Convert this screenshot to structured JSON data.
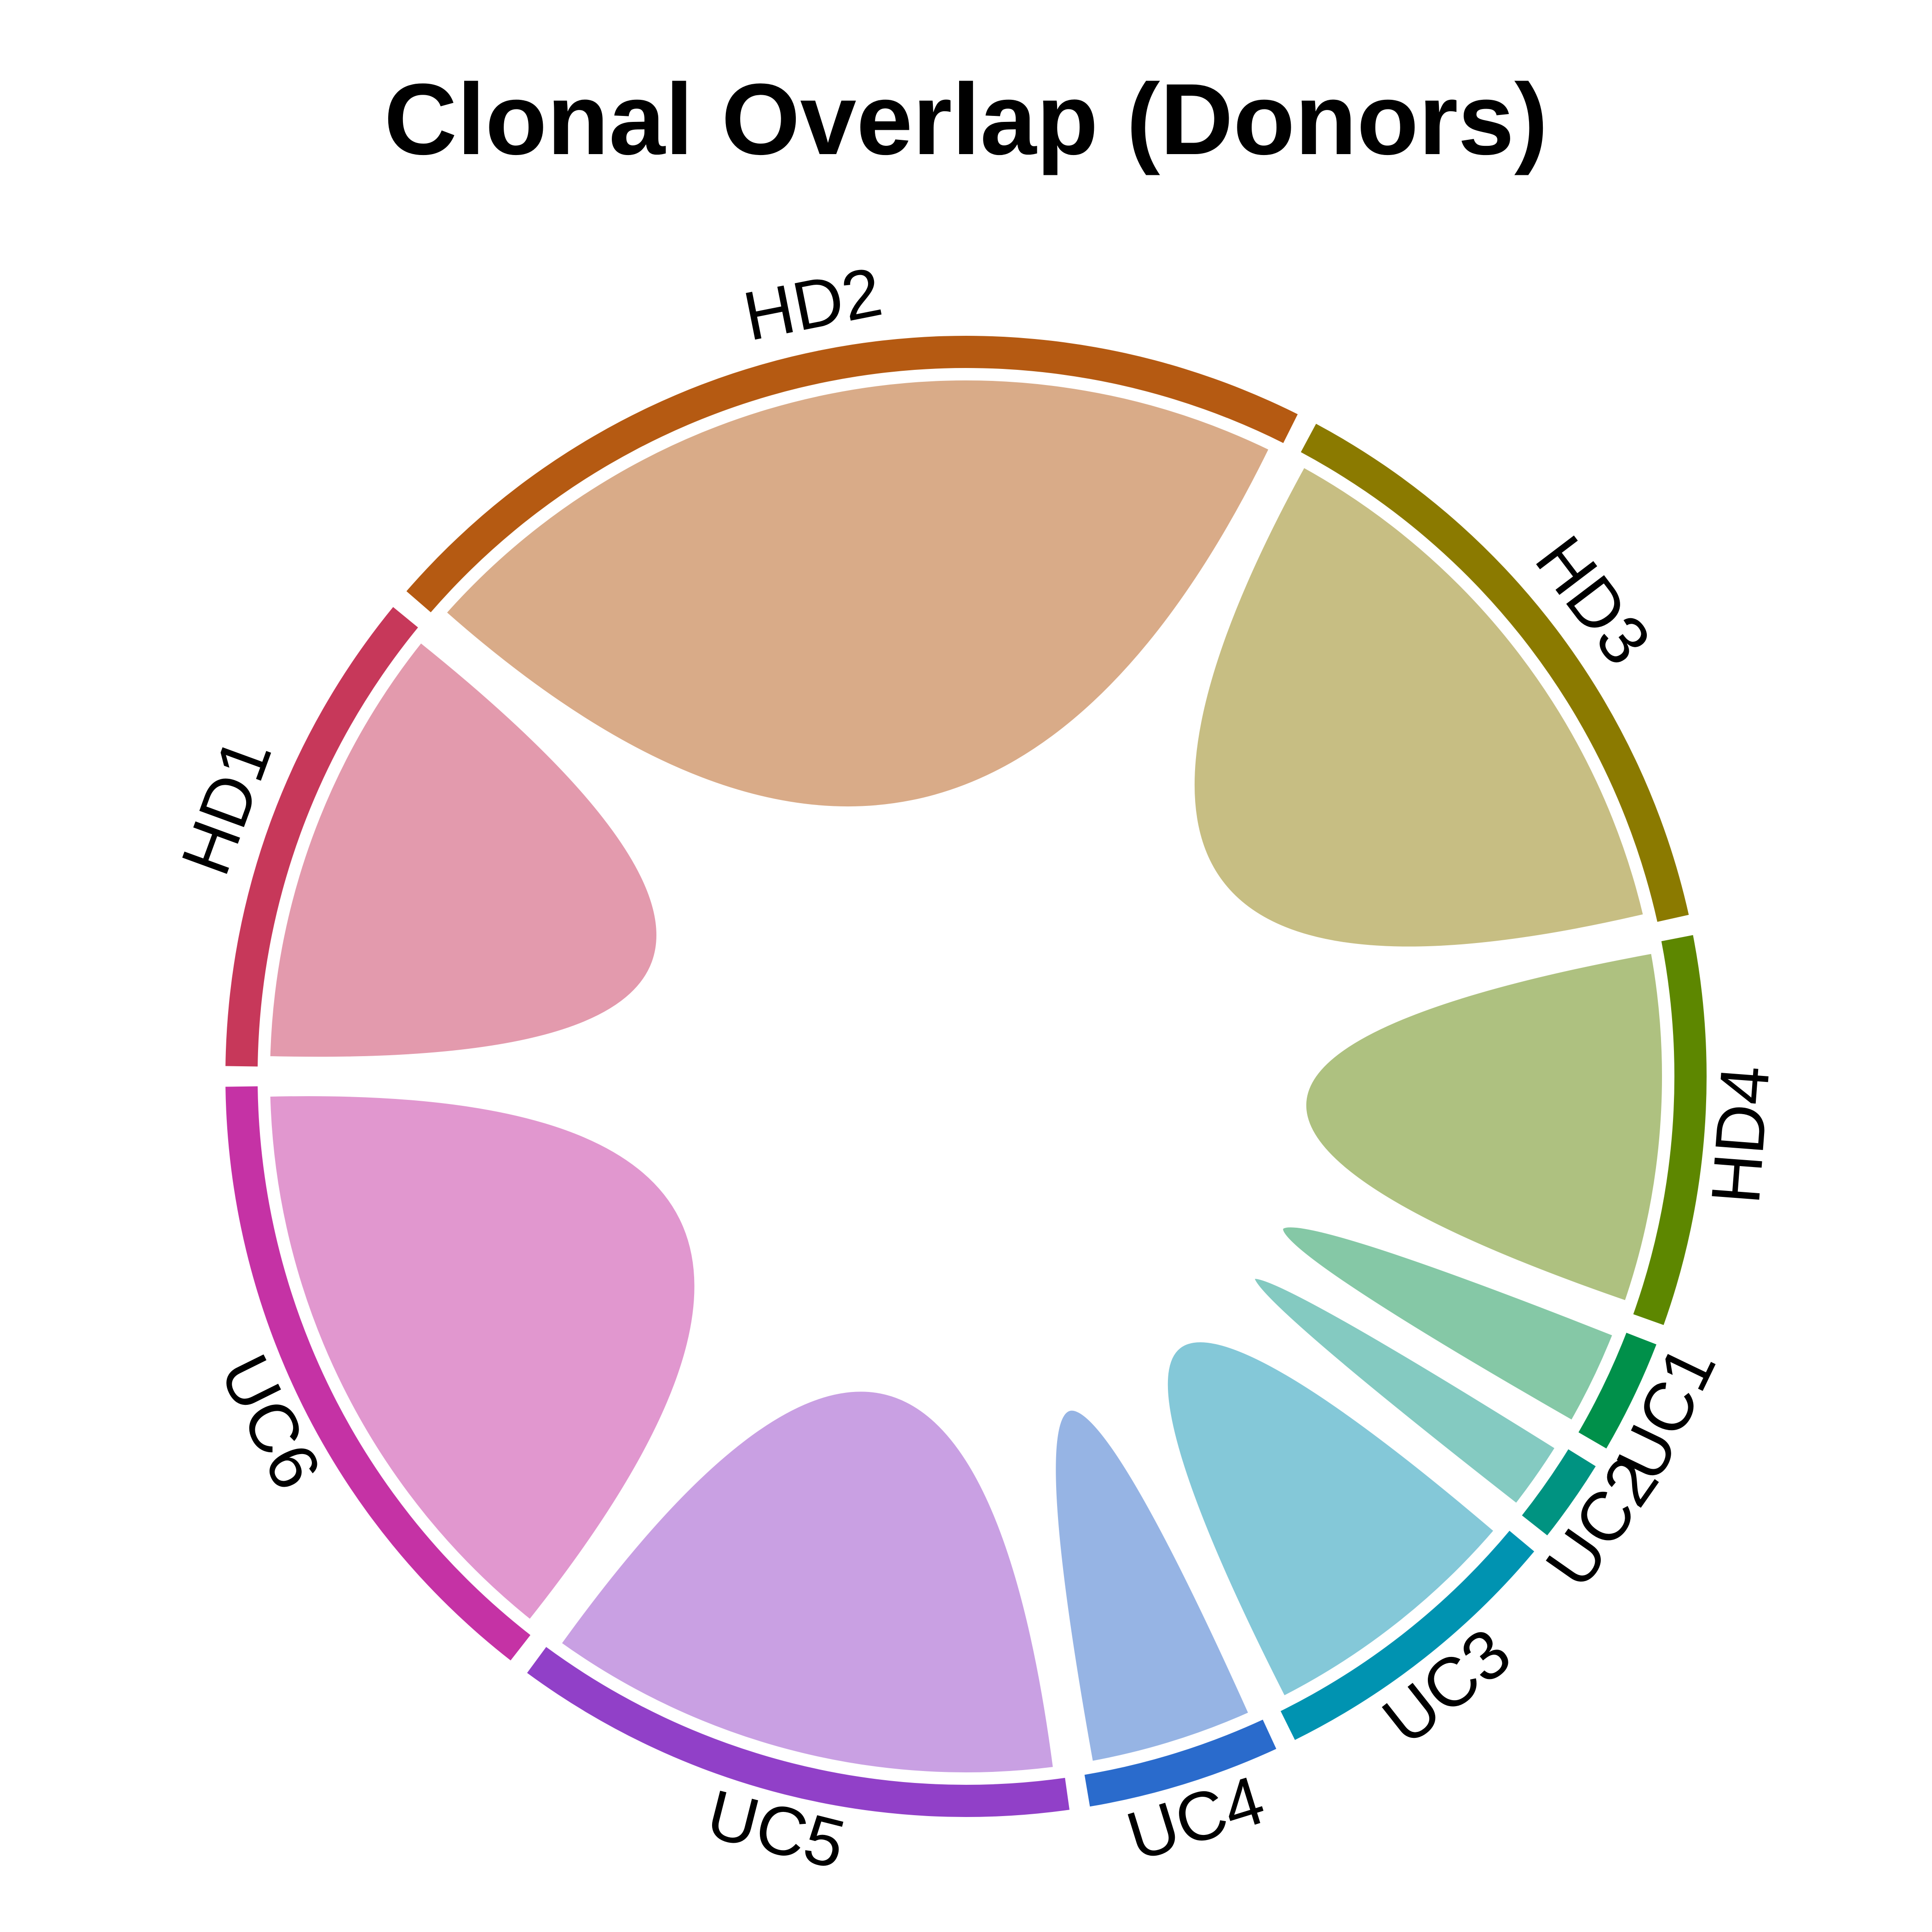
{
  "chart_data": {
    "type": "chord",
    "title": "Clonal Overlap (Donors)",
    "sectors": [
      {
        "name": "HD1",
        "value": 11.2,
        "color": "#c7385a",
        "ribbon_color": "#e39aad"
      },
      {
        "name": "HD2",
        "value": 22.0,
        "color": "#b55a12",
        "ribbon_color": "#d9ab88"
      },
      {
        "name": "HD3",
        "value": 14.3,
        "color": "#8b7a00",
        "ribbon_color": "#c7be83"
      },
      {
        "name": "HD4",
        "value": 8.9,
        "color": "#5d8700",
        "ribbon_color": "#aec180"
      },
      {
        "name": "UC1",
        "value": 2.6,
        "color": "#00904a",
        "ribbon_color": "#85c8a6"
      },
      {
        "name": "UC2",
        "value": 1.9,
        "color": "#009381",
        "ribbon_color": "#84cac1"
      },
      {
        "name": "UC3",
        "value": 6.9,
        "color": "#0093b1",
        "ribbon_color": "#84c8d8"
      },
      {
        "name": "UC4",
        "value": 4.4,
        "color": "#2a6bcc",
        "ribbon_color": "#96b4e4"
      },
      {
        "name": "UC5",
        "value": 12.9,
        "color": "#9140c8",
        "ribbon_color": "#c9a0e3"
      },
      {
        "name": "UC6",
        "value": 14.9,
        "color": "#c532a5",
        "ribbon_color": "#e197cf"
      }
    ],
    "start_angle_deg": 180,
    "direction": "clockwise",
    "legend": "none",
    "grid": false
  }
}
